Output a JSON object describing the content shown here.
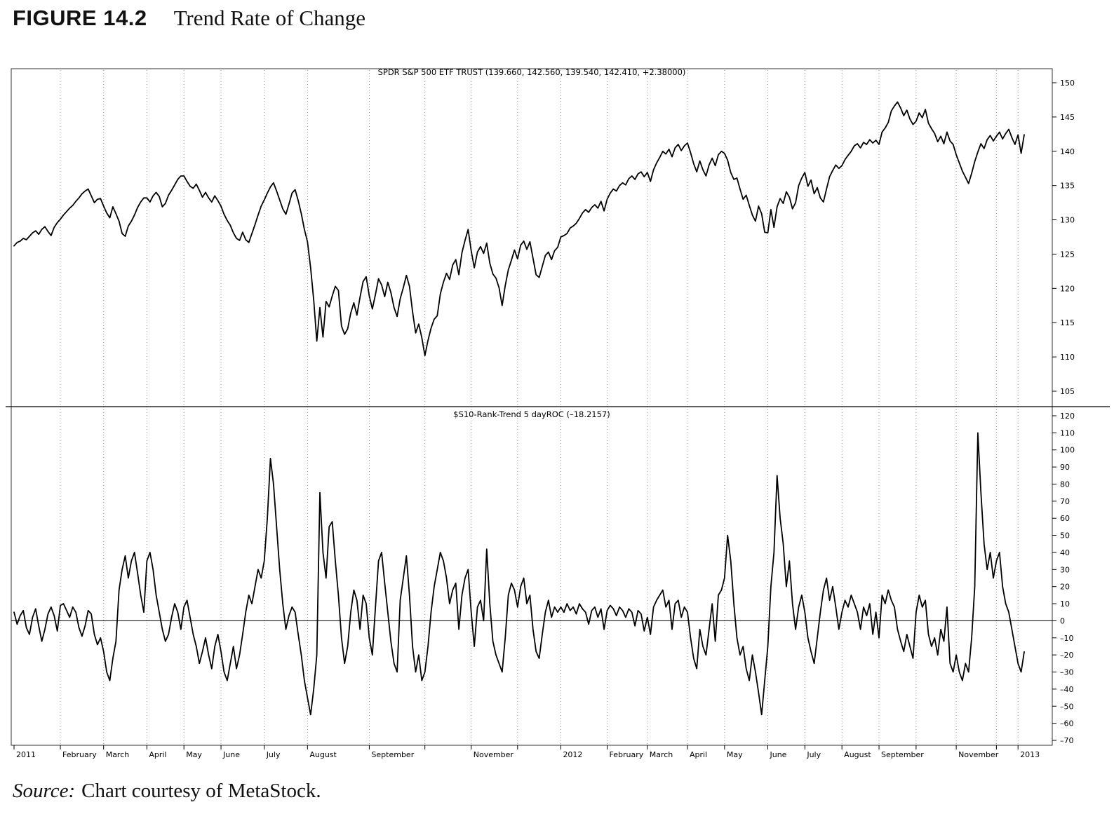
{
  "figure": {
    "label": "FIGURE 14.2",
    "title": "Trend Rate of Change"
  },
  "source": {
    "prefix": "Source:",
    "text": "Chart courtesy of MetaStock."
  },
  "chart_data": {
    "type": "line",
    "grid": "vertical-dashed-monthly",
    "line_color": "#000000",
    "panels": [
      {
        "name": "price",
        "title": "SPDR S&P 500 ETF TRUST (139.660, 142.560, 139.540, 142.410, +2.38000)",
        "ylim": [
          105,
          150
        ],
        "ytick_step": 5,
        "values": [
          126.2,
          126.7,
          126.9,
          127.3,
          127.1,
          127.6,
          128.1,
          128.4,
          127.9,
          128.6,
          129.0,
          128.3,
          127.7,
          128.9,
          129.6,
          130.1,
          130.7,
          131.2,
          131.7,
          132.1,
          132.7,
          133.2,
          133.8,
          134.2,
          134.5,
          133.5,
          132.5,
          133.0,
          133.1,
          132.0,
          131.0,
          130.3,
          131.9,
          130.9,
          129.8,
          128.0,
          127.6,
          129.1,
          129.8,
          130.7,
          131.8,
          132.6,
          133.2,
          133.2,
          132.6,
          133.5,
          134.0,
          133.4,
          131.9,
          132.4,
          133.6,
          134.3,
          135.1,
          135.9,
          136.4,
          136.4,
          135.6,
          134.9,
          134.6,
          135.2,
          134.3,
          133.3,
          134.0,
          133.2,
          132.6,
          133.5,
          132.8,
          132.0,
          130.8,
          129.9,
          129.2,
          128.1,
          127.3,
          127.0,
          128.2,
          127.1,
          126.7,
          128.0,
          129.3,
          130.7,
          132.0,
          132.9,
          133.9,
          134.8,
          135.4,
          134.2,
          132.9,
          131.6,
          130.8,
          132.3,
          133.9,
          134.4,
          132.8,
          130.9,
          128.6,
          126.8,
          123.0,
          118.3,
          112.3,
          117.2,
          112.9,
          118.1,
          117.3,
          118.9,
          120.3,
          119.7,
          114.5,
          113.3,
          114.1,
          116.4,
          117.9,
          116.1,
          118.7,
          121.0,
          121.7,
          118.9,
          117.0,
          119.1,
          121.4,
          120.5,
          118.8,
          120.9,
          119.4,
          117.2,
          115.9,
          118.5,
          120.1,
          121.9,
          120.3,
          116.6,
          113.5,
          114.8,
          112.8,
          110.2,
          112.4,
          114.2,
          115.5,
          116.0,
          119.2,
          120.9,
          122.2,
          121.3,
          123.4,
          124.2,
          122.0,
          125.2,
          127.0,
          128.6,
          125.5,
          123.0,
          125.3,
          126.1,
          125.1,
          126.6,
          123.7,
          122.1,
          121.5,
          120.1,
          117.5,
          120.4,
          122.7,
          124.1,
          125.6,
          124.3,
          126.3,
          126.9,
          125.7,
          126.8,
          124.4,
          122.0,
          121.6,
          123.2,
          124.8,
          125.3,
          124.2,
          125.5,
          126.0,
          127.5,
          127.7,
          128.0,
          128.8,
          129.1,
          129.5,
          130.2,
          131.0,
          131.5,
          131.1,
          131.8,
          132.2,
          131.7,
          132.7,
          131.3,
          133.0,
          133.9,
          134.5,
          134.2,
          135.0,
          135.4,
          135.1,
          136.0,
          136.4,
          135.9,
          136.7,
          137.0,
          136.3,
          136.9,
          135.6,
          137.3,
          138.3,
          139.1,
          140.0,
          139.6,
          140.3,
          139.2,
          140.5,
          141.0,
          140.1,
          140.8,
          141.2,
          139.8,
          138.2,
          137.0,
          138.6,
          137.3,
          136.4,
          138.0,
          139.0,
          137.9,
          139.5,
          140.0,
          139.7,
          138.7,
          136.9,
          135.9,
          136.1,
          134.5,
          133.0,
          133.6,
          132.1,
          130.7,
          129.8,
          132.0,
          130.9,
          128.2,
          128.1,
          131.5,
          128.9,
          131.9,
          133.1,
          132.4,
          134.1,
          133.3,
          131.6,
          132.5,
          135.0,
          136.1,
          136.9,
          134.9,
          135.8,
          133.8,
          134.7,
          133.2,
          132.6,
          134.5,
          136.3,
          137.2,
          138.0,
          137.5,
          137.9,
          138.8,
          139.4,
          140.0,
          140.8,
          141.1,
          140.5,
          141.3,
          141.0,
          141.7,
          141.2,
          141.6,
          141.0,
          142.8,
          143.4,
          144.2,
          145.9,
          146.6,
          147.2,
          146.3,
          145.2,
          146.0,
          144.7,
          143.9,
          144.4,
          145.6,
          144.9,
          146.1,
          144.1,
          143.3,
          142.6,
          141.4,
          142.2,
          141.1,
          142.8,
          141.5,
          141.0,
          139.5,
          138.3,
          137.1,
          136.2,
          135.3,
          136.8,
          138.5,
          139.9,
          141.1,
          140.4,
          141.7,
          142.3,
          141.5,
          142.2,
          142.8,
          141.8,
          142.6,
          143.2,
          142.0,
          141.0,
          142.4,
          139.7,
          142.41
        ]
      },
      {
        "name": "roc",
        "title": "$S10-Rank-Trend 5 dayROC (–18.2157)",
        "ylim": [
          -70,
          120
        ],
        "ytick_step": 10,
        "zero_line": true,
        "values": [
          5,
          -2,
          3,
          6,
          -4,
          -8,
          2,
          7,
          -3,
          -12,
          -5,
          4,
          8,
          3,
          -6,
          9,
          10,
          6,
          2,
          8,
          5,
          -4,
          -9,
          -3,
          6,
          4,
          -8,
          -14,
          -10,
          -18,
          -30,
          -35,
          -22,
          -12,
          18,
          30,
          38,
          25,
          35,
          40,
          28,
          15,
          5,
          35,
          40,
          30,
          15,
          5,
          -5,
          -12,
          -8,
          2,
          10,
          5,
          -5,
          8,
          12,
          2,
          -8,
          -15,
          -25,
          -18,
          -10,
          -20,
          -28,
          -15,
          -8,
          -18,
          -30,
          -35,
          -25,
          -15,
          -28,
          -20,
          -8,
          5,
          15,
          10,
          20,
          30,
          25,
          35,
          60,
          95,
          80,
          55,
          30,
          10,
          -5,
          3,
          8,
          5,
          -8,
          -20,
          -35,
          -45,
          -55,
          -40,
          -20,
          75,
          40,
          25,
          55,
          58,
          35,
          15,
          -10,
          -25,
          -15,
          5,
          18,
          12,
          -5,
          15,
          10,
          -10,
          -20,
          8,
          35,
          40,
          22,
          5,
          -12,
          -25,
          -30,
          12,
          25,
          38,
          15,
          -15,
          -30,
          -20,
          -35,
          -30,
          -15,
          5,
          20,
          30,
          40,
          35,
          25,
          10,
          18,
          22,
          -5,
          15,
          25,
          30,
          5,
          -15,
          8,
          12,
          0,
          42,
          10,
          -12,
          -20,
          -25,
          -30,
          -10,
          15,
          22,
          18,
          8,
          20,
          25,
          10,
          15,
          -5,
          -18,
          -22,
          -8,
          5,
          12,
          2,
          8,
          5,
          8,
          5,
          10,
          6,
          8,
          4,
          10,
          7,
          5,
          -2,
          6,
          8,
          2,
          7,
          -5,
          6,
          9,
          7,
          3,
          8,
          6,
          2,
          7,
          5,
          -3,
          6,
          4,
          -6,
          2,
          -8,
          8,
          12,
          15,
          18,
          8,
          12,
          -5,
          10,
          12,
          2,
          8,
          5,
          -10,
          -22,
          -28,
          -5,
          -15,
          -20,
          -5,
          10,
          -12,
          15,
          18,
          25,
          50,
          35,
          10,
          -10,
          -20,
          -15,
          -28,
          -35,
          -20,
          -30,
          -42,
          -55,
          -35,
          -15,
          20,
          40,
          85,
          60,
          45,
          20,
          35,
          10,
          -5,
          8,
          15,
          5,
          -10,
          -18,
          -25,
          -10,
          5,
          18,
          25,
          12,
          20,
          8,
          -5,
          5,
          12,
          8,
          15,
          10,
          5,
          -5,
          8,
          3,
          10,
          -8,
          5,
          -10,
          15,
          10,
          18,
          12,
          8,
          -5,
          -12,
          -18,
          -8,
          -15,
          -22,
          5,
          15,
          8,
          12,
          -8,
          -15,
          -10,
          -20,
          -5,
          -12,
          8,
          -25,
          -30,
          -20,
          -30,
          -35,
          -25,
          -30,
          -10,
          20,
          110,
          75,
          45,
          30,
          40,
          25,
          35,
          40,
          20,
          10,
          5,
          -5,
          -15,
          -25,
          -30,
          -18.2
        ]
      }
    ],
    "x_axis": {
      "months": [
        {
          "label": "2011",
          "index": 0
        },
        {
          "label": "February",
          "index": 15
        },
        {
          "label": "March",
          "index": 29
        },
        {
          "label": "April",
          "index": 43
        },
        {
          "label": "May",
          "index": 55
        },
        {
          "label": "June",
          "index": 67
        },
        {
          "label": "July",
          "index": 81
        },
        {
          "label": "August",
          "index": 95
        },
        {
          "label": "September",
          "index": 115
        },
        {
          "label": "",
          "index": 133
        },
        {
          "label": "November",
          "index": 148
        },
        {
          "label": "",
          "index": 163
        },
        {
          "label": "2012",
          "index": 177
        },
        {
          "label": "February",
          "index": 192
        },
        {
          "label": "March",
          "index": 205
        },
        {
          "label": "April",
          "index": 218
        },
        {
          "label": "May",
          "index": 230
        },
        {
          "label": "June",
          "index": 244
        },
        {
          "label": "July",
          "index": 256
        },
        {
          "label": "August",
          "index": 268
        },
        {
          "label": "September",
          "index": 280
        },
        {
          "label": "",
          "index": 292
        },
        {
          "label": "November",
          "index": 305
        },
        {
          "label": "",
          "index": 318
        },
        {
          "label": "2013",
          "index": 325
        }
      ]
    }
  }
}
